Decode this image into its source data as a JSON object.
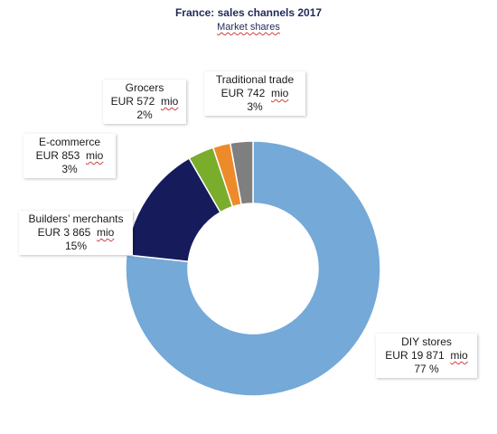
{
  "chart_data": {
    "type": "pie",
    "variant": "donut",
    "title": "France: sales channels 2017",
    "subtitle": "Market shares",
    "currency": "EUR",
    "unit": "mio",
    "slices": [
      {
        "label": "DIY stores",
        "value": 19871,
        "value_text": "19 871",
        "pct_text": "77 %",
        "color": "#74a9d8"
      },
      {
        "label": "Builders’ merchants",
        "value": 3865,
        "value_text": "3 865",
        "pct_text": "15%",
        "color": "#161b5c"
      },
      {
        "label": "E-commerce",
        "value": 853,
        "value_text": "853",
        "pct_text": "3%",
        "color": "#7aad2c"
      },
      {
        "label": "Grocers",
        "value": 572,
        "value_text": "572",
        "pct_text": "2%",
        "color": "#ed8a2a"
      },
      {
        "label": "Traditional trade",
        "value": 742,
        "value_text": "742",
        "pct_text": "3%",
        "color": "#7f7f7f"
      }
    ]
  }
}
